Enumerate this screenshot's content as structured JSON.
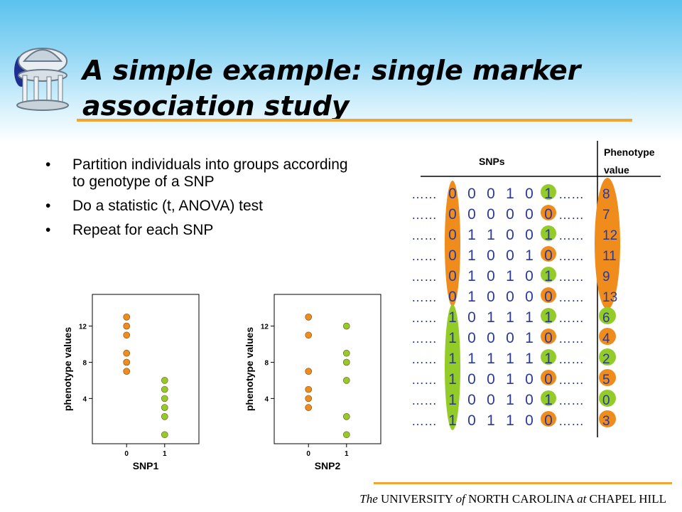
{
  "slide": {
    "title": "A simple example: single marker association study",
    "footer": {
      "the": "The",
      "university": "UNIVERSITY",
      "of": "of",
      "nc": "NORTH CAROLINA",
      "at": "at",
      "ch": "CHAPEL HILL"
    },
    "logo_icon": "old-well-icon"
  },
  "bullets": [
    "Partition individuals into groups according to genotype of a SNP",
    "Do a statistic (t, ANOVA) test",
    "Repeat for each SNP"
  ],
  "table": {
    "snps_header": "SNPs",
    "phenotype_header_1": "Phenotype",
    "phenotype_header_2": "value",
    "ellipsis": "……",
    "rows": [
      {
        "snps": [
          "0",
          "0",
          "0",
          "1",
          "0",
          "1"
        ],
        "phenotype": "8"
      },
      {
        "snps": [
          "0",
          "0",
          "0",
          "0",
          "0",
          "0"
        ],
        "phenotype": "7"
      },
      {
        "snps": [
          "0",
          "1",
          "1",
          "0",
          "0",
          "1"
        ],
        "phenotype": "12"
      },
      {
        "snps": [
          "0",
          "1",
          "0",
          "0",
          "1",
          "0"
        ],
        "phenotype": "11"
      },
      {
        "snps": [
          "0",
          "1",
          "0",
          "1",
          "0",
          "1"
        ],
        "phenotype": "9"
      },
      {
        "snps": [
          "0",
          "1",
          "0",
          "0",
          "0",
          "0"
        ],
        "phenotype": "13"
      },
      {
        "snps": [
          "1",
          "0",
          "1",
          "1",
          "1",
          "1"
        ],
        "phenotype": "6"
      },
      {
        "snps": [
          "1",
          "0",
          "0",
          "0",
          "1",
          "0"
        ],
        "phenotype": "4"
      },
      {
        "snps": [
          "1",
          "1",
          "1",
          "1",
          "1",
          "1"
        ],
        "phenotype": "2"
      },
      {
        "snps": [
          "1",
          "0",
          "0",
          "1",
          "0",
          "0"
        ],
        "phenotype": "5"
      },
      {
        "snps": [
          "1",
          "0",
          "0",
          "1",
          "0",
          "1"
        ],
        "phenotype": "0"
      },
      {
        "snps": [
          "1",
          "0",
          "1",
          "1",
          "0",
          "0"
        ],
        "phenotype": "3"
      }
    ],
    "colors": {
      "group0": "#ef8c1c",
      "group1": "#93cc29",
      "text": "#2b3a96"
    }
  },
  "chart_data": [
    {
      "type": "scatter",
      "title": "",
      "xlabel": "SNP1",
      "ylabel": "phenotype values",
      "x_ticks": [
        "0",
        "1"
      ],
      "y_ticks": [
        "4",
        "8",
        "12"
      ],
      "xlim": [
        -0.9,
        1.9
      ],
      "ylim": [
        -1,
        15.5
      ],
      "series": [
        {
          "x_value": 0,
          "color": "#ef8c1c",
          "values": [
            13,
            12,
            11,
            9,
            8,
            7
          ]
        },
        {
          "x_value": 1,
          "color": "#93cc29",
          "values": [
            6,
            5,
            4,
            3,
            2,
            0
          ]
        }
      ]
    },
    {
      "type": "scatter",
      "title": "",
      "xlabel": "SNP2",
      "ylabel": "phenotype values",
      "x_ticks": [
        "0",
        "1"
      ],
      "y_ticks": [
        "4",
        "8",
        "12"
      ],
      "xlim": [
        -0.9,
        1.9
      ],
      "ylim": [
        -1,
        15.5
      ],
      "series": [
        {
          "x_value": 0,
          "color": "#ef8c1c",
          "values": [
            13,
            11,
            7,
            5,
            4,
            3
          ]
        },
        {
          "x_value": 1,
          "color": "#93cc29",
          "values": [
            12,
            9,
            8,
            6,
            2,
            0
          ]
        }
      ]
    }
  ]
}
